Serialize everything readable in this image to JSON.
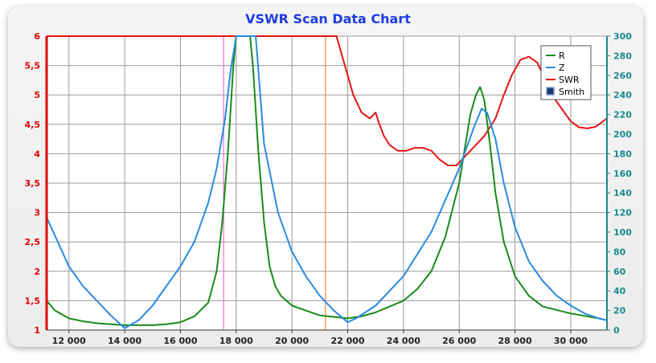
{
  "colors": {
    "title": "#1e3ce6",
    "r": "#1a8a1a",
    "z": "#2a8ae0",
    "swr": "#e81414",
    "marker1": "#e070e0",
    "marker2": "#ff8c30",
    "left_axis": "#e00000",
    "right_axis": "#1a8a8a"
  },
  "chart_data": {
    "type": "line",
    "title": "VSWR Scan Data Chart",
    "xlim": [
      11200,
      31300
    ],
    "ylim_left": [
      1,
      6
    ],
    "ylim_right": [
      0,
      300
    ],
    "grid": true,
    "legend_position": "top-right",
    "x_ticks": [
      "12 000",
      "14 000",
      "16 000",
      "18 000",
      "20 000",
      "22 000",
      "24 000",
      "26 000",
      "28 000",
      "30 000"
    ],
    "x_tick_values": [
      12000,
      14000,
      16000,
      18000,
      20000,
      22000,
      24000,
      26000,
      28000,
      30000
    ],
    "y_left_ticks": [
      "6",
      "5,5",
      "5",
      "4,5",
      "4",
      "3,5",
      "3",
      "2,5",
      "2",
      "1,5",
      "1"
    ],
    "y_left_tick_values": [
      6,
      5.5,
      5,
      4.5,
      4,
      3.5,
      3,
      2.5,
      2,
      1.5,
      1
    ],
    "y_right_ticks": [
      "300",
      "280",
      "260",
      "240",
      "220",
      "200",
      "180",
      "160",
      "140",
      "120",
      "100",
      "80",
      "60",
      "40",
      "20",
      "0"
    ],
    "y_right_tick_values": [
      300,
      280,
      260,
      240,
      220,
      200,
      180,
      160,
      140,
      120,
      100,
      80,
      60,
      40,
      20,
      0
    ],
    "markers": [
      {
        "x": 17550,
        "color_key": "marker1"
      },
      {
        "x": 21200,
        "color_key": "marker2"
      }
    ],
    "legend": [
      "R",
      "Z",
      "SWR",
      "Smith"
    ],
    "series": [
      {
        "name": "SWR",
        "axis": "left",
        "color_key": "swr",
        "x": [
          11200,
          21600,
          21900,
          22200,
          22500,
          22800,
          23000,
          23100,
          23300,
          23500,
          23800,
          24100,
          24400,
          24700,
          25000,
          25300,
          25600,
          25900,
          26200,
          26500,
          26900,
          27300,
          27600,
          27900,
          28200,
          28500,
          28800,
          29100,
          29400,
          29700,
          30000,
          30300,
          30600,
          30900,
          31300
        ],
        "values": [
          6,
          6,
          5.5,
          5.0,
          4.7,
          4.6,
          4.7,
          4.55,
          4.3,
          4.15,
          4.05,
          4.05,
          4.1,
          4.1,
          4.05,
          3.9,
          3.8,
          3.8,
          3.95,
          4.1,
          4.3,
          4.6,
          5.0,
          5.35,
          5.6,
          5.65,
          5.55,
          5.25,
          4.95,
          4.75,
          4.55,
          4.45,
          4.43,
          4.46,
          4.6
        ]
      },
      {
        "name": "R",
        "axis": "right",
        "color_key": "r",
        "x": [
          11200,
          11500,
          12000,
          12500,
          13000,
          14000,
          15000,
          15500,
          16000,
          16500,
          17000,
          17300,
          17500,
          17700,
          17900,
          18000,
          18100,
          18300,
          18500,
          18600,
          18800,
          19000,
          19200,
          19400,
          19600,
          20000,
          21000,
          22000,
          22500,
          23000,
          23500,
          24000,
          24500,
          25000,
          25500,
          26000,
          26200,
          26400,
          26600,
          26750,
          26900,
          27100,
          27300,
          27600,
          28000,
          28500,
          29000,
          30000,
          31000,
          31300
        ],
        "values": [
          30,
          20,
          12,
          9,
          7,
          5,
          5,
          6,
          8,
          14,
          28,
          60,
          110,
          180,
          270,
          300,
          300,
          300,
          300,
          270,
          180,
          110,
          65,
          45,
          35,
          25,
          15,
          12,
          14,
          18,
          24,
          30,
          42,
          60,
          95,
          150,
          185,
          220,
          240,
          248,
          235,
          190,
          140,
          90,
          55,
          35,
          24,
          17,
          12,
          10
        ]
      },
      {
        "name": "Z",
        "axis": "right",
        "color_key": "z",
        "x": [
          11200,
          11600,
          12000,
          12500,
          13000,
          13500,
          14000,
          14500,
          15000,
          15500,
          16000,
          16500,
          17000,
          17300,
          17600,
          17800,
          18000,
          18300,
          18500,
          18700,
          19000,
          19500,
          20000,
          20500,
          21000,
          21500,
          22000,
          22300,
          23000,
          24000,
          25000,
          26000,
          26500,
          26800,
          27000,
          27300,
          27600,
          28000,
          28500,
          29000,
          29500,
          30000,
          30500,
          31000,
          31300
        ],
        "values": [
          115,
          90,
          65,
          45,
          30,
          15,
          2,
          10,
          25,
          45,
          65,
          90,
          130,
          165,
          215,
          265,
          300,
          300,
          300,
          300,
          190,
          120,
          80,
          55,
          35,
          20,
          8,
          12,
          25,
          55,
          100,
          165,
          205,
          226,
          222,
          195,
          150,
          105,
          70,
          50,
          35,
          25,
          17,
          12,
          10
        ]
      }
    ]
  }
}
